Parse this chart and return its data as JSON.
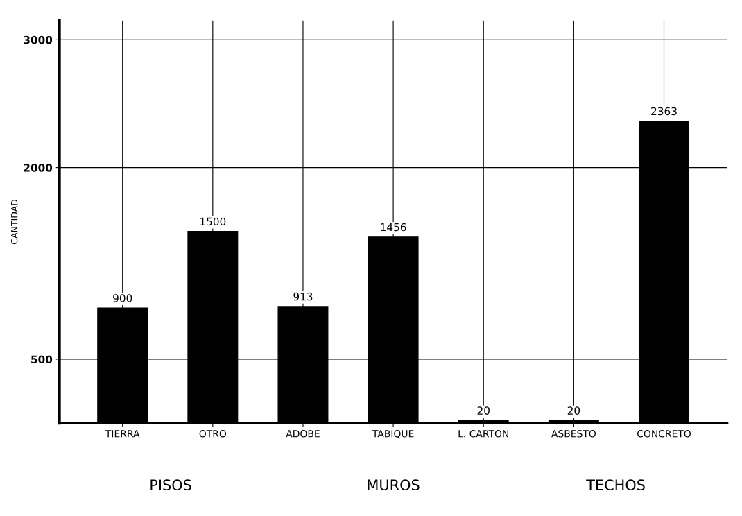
{
  "chart_data": {
    "type": "bar",
    "ylabel": "CANTIDAD",
    "categories": [
      "TIERRA",
      "OTRO",
      "ADOBE",
      "TABIQUE",
      "L. CARTON",
      "ASBESTO",
      "CONCRETO"
    ],
    "values": [
      900,
      1500,
      913,
      1456,
      20,
      20,
      2363
    ],
    "color": "#000000",
    "ylim": [
      0,
      3150
    ],
    "yticks": [
      500,
      2000,
      3000
    ],
    "grid": true,
    "data_labels": true,
    "annotations": [
      "PISOS",
      "MUROS",
      "TECHOS"
    ]
  }
}
